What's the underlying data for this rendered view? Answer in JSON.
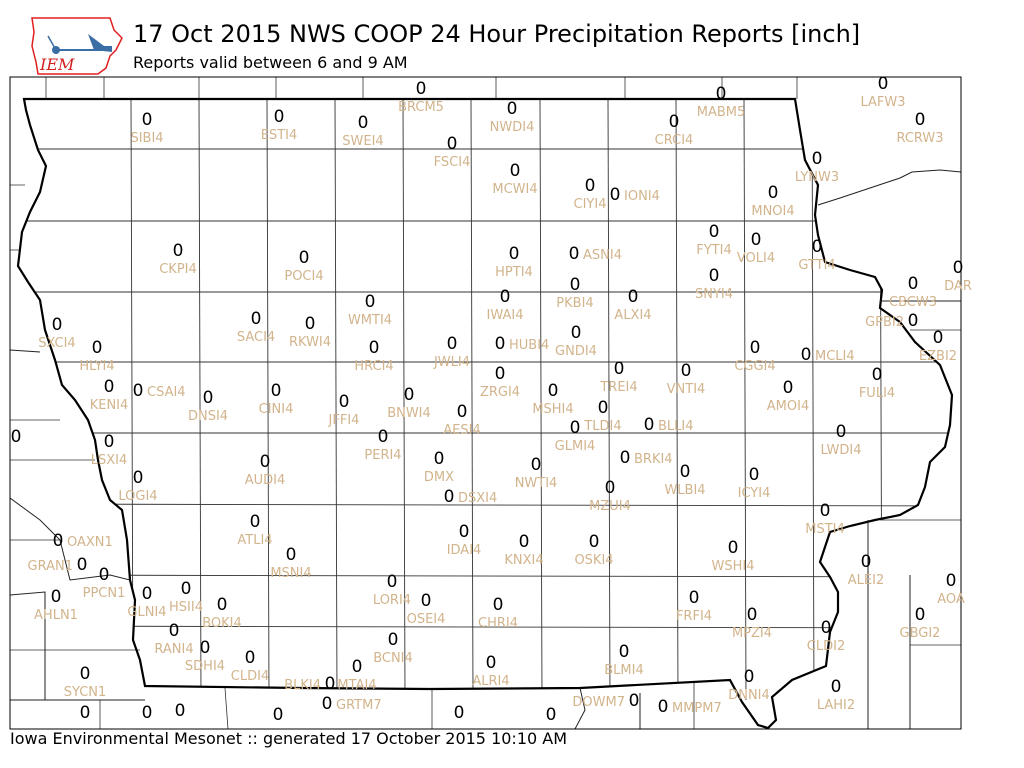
{
  "header": {
    "title": "17 Oct 2015 NWS COOP 24 Hour Precipitation Reports [inch]",
    "subtitle": "Reports valid between 6 and 9 AM",
    "logo_text": "IEM"
  },
  "footer": "Iowa Environmental Mesonet :: generated 17 October 2015 10:10 AM",
  "colors": {
    "value": "#000000",
    "station_label": "#D2B48C",
    "state_border": "#000000",
    "county_line": "#333333"
  },
  "stations": [
    {
      "id": "BRCM5",
      "value": "0"
    },
    {
      "id": "SIBI4",
      "value": "0"
    },
    {
      "id": "ESTI4",
      "value": "0"
    },
    {
      "id": "SWEI4",
      "value": "0"
    },
    {
      "id": "NWDI4",
      "value": "0"
    },
    {
      "id": "FSCI4",
      "value": "0"
    },
    {
      "id": "MABM5",
      "value": "0"
    },
    {
      "id": "LAFW3",
      "value": "0"
    },
    {
      "id": "RCRW3",
      "value": "0"
    },
    {
      "id": "CRCI4",
      "value": "0"
    },
    {
      "id": "MCWI4",
      "value": "0"
    },
    {
      "id": "CIYI4",
      "value": "0"
    },
    {
      "id": "IONI4",
      "value": "0"
    },
    {
      "id": "LYNW3",
      "value": "0"
    },
    {
      "id": "MNOI4",
      "value": "0"
    },
    {
      "id": "FYTI4",
      "value": "0"
    },
    {
      "id": "VOLI4",
      "value": "0"
    },
    {
      "id": "GTTI4",
      "value": "0"
    },
    {
      "id": "CKPI4",
      "value": "0"
    },
    {
      "id": "POCI4",
      "value": "0"
    },
    {
      "id": "HPTI4",
      "value": "0"
    },
    {
      "id": "ASNI4",
      "value": "0"
    },
    {
      "id": "DAR",
      "value": "0"
    },
    {
      "id": "CBCW3",
      "value": "0"
    },
    {
      "id": "SNYI4",
      "value": "0"
    },
    {
      "id": "IWAI4",
      "value": "0"
    },
    {
      "id": "PKBI4",
      "value": "0"
    },
    {
      "id": "ALXI4",
      "value": "0"
    },
    {
      "id": "WMTI4",
      "value": "0"
    },
    {
      "id": "SXCI4",
      "value": "0"
    },
    {
      "id": "SACI4",
      "value": "0"
    },
    {
      "id": "RKWI4",
      "value": "0"
    },
    {
      "id": "GPBI2",
      "value": "0"
    },
    {
      "id": "EZBI2",
      "value": "0"
    },
    {
      "id": "HLYI4",
      "value": "0"
    },
    {
      "id": "HRCI4",
      "value": "0"
    },
    {
      "id": "JWLI4",
      "value": "0"
    },
    {
      "id": "HUBI4",
      "value": "0"
    },
    {
      "id": "GNDI4",
      "value": "0"
    },
    {
      "id": "CGGI4",
      "value": "0"
    },
    {
      "id": "MCLI4",
      "value": "0"
    },
    {
      "id": "TREI4",
      "value": "0"
    },
    {
      "id": "VNTI4",
      "value": "0"
    },
    {
      "id": "FULI4",
      "value": "0"
    },
    {
      "id": "KENI4",
      "value": "0"
    },
    {
      "id": "CSAI4",
      "value": "0"
    },
    {
      "id": "DNSI4",
      "value": "0"
    },
    {
      "id": "CINI4",
      "value": "0"
    },
    {
      "id": "JFFI4",
      "value": "0"
    },
    {
      "id": "BNWI4",
      "value": "0"
    },
    {
      "id": "ZRGI4",
      "value": "0"
    },
    {
      "id": "MSHI4",
      "value": "0"
    },
    {
      "id": "AMOI4",
      "value": "0"
    },
    {
      "id": "AESI4",
      "value": "0"
    },
    {
      "id": "TLDI4",
      "value": "0"
    },
    {
      "id": "GLMI4",
      "value": "0"
    },
    {
      "id": "BLLI4",
      "value": "0"
    },
    {
      "id": "LWDI4",
      "value": "0"
    },
    {
      "id": "LSXI4",
      "value": "0"
    },
    {
      "id": "PERI4",
      "value": "0"
    },
    {
      "id": "DMX",
      "value": "0"
    },
    {
      "id": "NWTI4",
      "value": "0"
    },
    {
      "id": "BRKI4",
      "value": "0"
    },
    {
      "id": "WLBI4",
      "value": "0"
    },
    {
      "id": "ICYI4",
      "value": "0"
    },
    {
      "id": "LOGI4",
      "value": "0"
    },
    {
      "id": "AUDI4",
      "value": "0"
    },
    {
      "id": "MZUI4",
      "value": "0"
    },
    {
      "id": "DSXI4",
      "value": "0"
    },
    {
      "id": "MSTI4",
      "value": "0"
    },
    {
      "id": "ATLI4",
      "value": "0"
    },
    {
      "id": "IDAI4",
      "value": "0"
    },
    {
      "id": "KNXI4",
      "value": "0"
    },
    {
      "id": "OSKI4",
      "value": "0"
    },
    {
      "id": "WSHI4",
      "value": "0"
    },
    {
      "id": "OAXN1",
      "value": "0"
    },
    {
      "id": "MSNI4",
      "value": "0"
    },
    {
      "id": "GRAN1",
      "value": "0"
    },
    {
      "id": "PPCN1",
      "value": "0"
    },
    {
      "id": "ALEI2",
      "value": "0"
    },
    {
      "id": "AOA",
      "value": "0"
    },
    {
      "id": "AHLN1",
      "value": "0"
    },
    {
      "id": "GLNI4",
      "value": "0"
    },
    {
      "id": "HSII4",
      "value": "0"
    },
    {
      "id": "BOKI4",
      "value": "0"
    },
    {
      "id": "LORI4",
      "value": "0"
    },
    {
      "id": "OSEI4",
      "value": "0"
    },
    {
      "id": "CHRI4",
      "value": "0"
    },
    {
      "id": "FRFI4",
      "value": "0"
    },
    {
      "id": "MPZI4",
      "value": "0"
    },
    {
      "id": "GBGI2",
      "value": "0"
    },
    {
      "id": "RANI4",
      "value": "0"
    },
    {
      "id": "SDHI4",
      "value": "0"
    },
    {
      "id": "CLDI4",
      "value": "0"
    },
    {
      "id": "BCNI4",
      "value": "0"
    },
    {
      "id": "CLDI2",
      "value": "0"
    },
    {
      "id": "BLMI4",
      "value": "0"
    },
    {
      "id": "ALRI4",
      "value": "0"
    },
    {
      "id": "MTAI4",
      "value": "0"
    },
    {
      "id": "SYCN1",
      "value": "0"
    },
    {
      "id": "DNNI4",
      "value": "0"
    },
    {
      "id": "LAHI2",
      "value": "0"
    },
    {
      "id": "BLKI4",
      "value": "0"
    },
    {
      "id": "GRTM7",
      "value": "0"
    },
    {
      "id": "DOWM7",
      "value": "0"
    },
    {
      "id": "MMPM7",
      "value": "0"
    },
    {
      "id": "",
      "value": "0"
    },
    {
      "id": "",
      "value": "0"
    },
    {
      "id": "",
      "value": "0"
    },
    {
      "id": "",
      "value": "0"
    },
    {
      "id": "",
      "value": "0"
    },
    {
      "id": "",
      "value": "0"
    },
    {
      "id": "",
      "value": "0"
    }
  ]
}
